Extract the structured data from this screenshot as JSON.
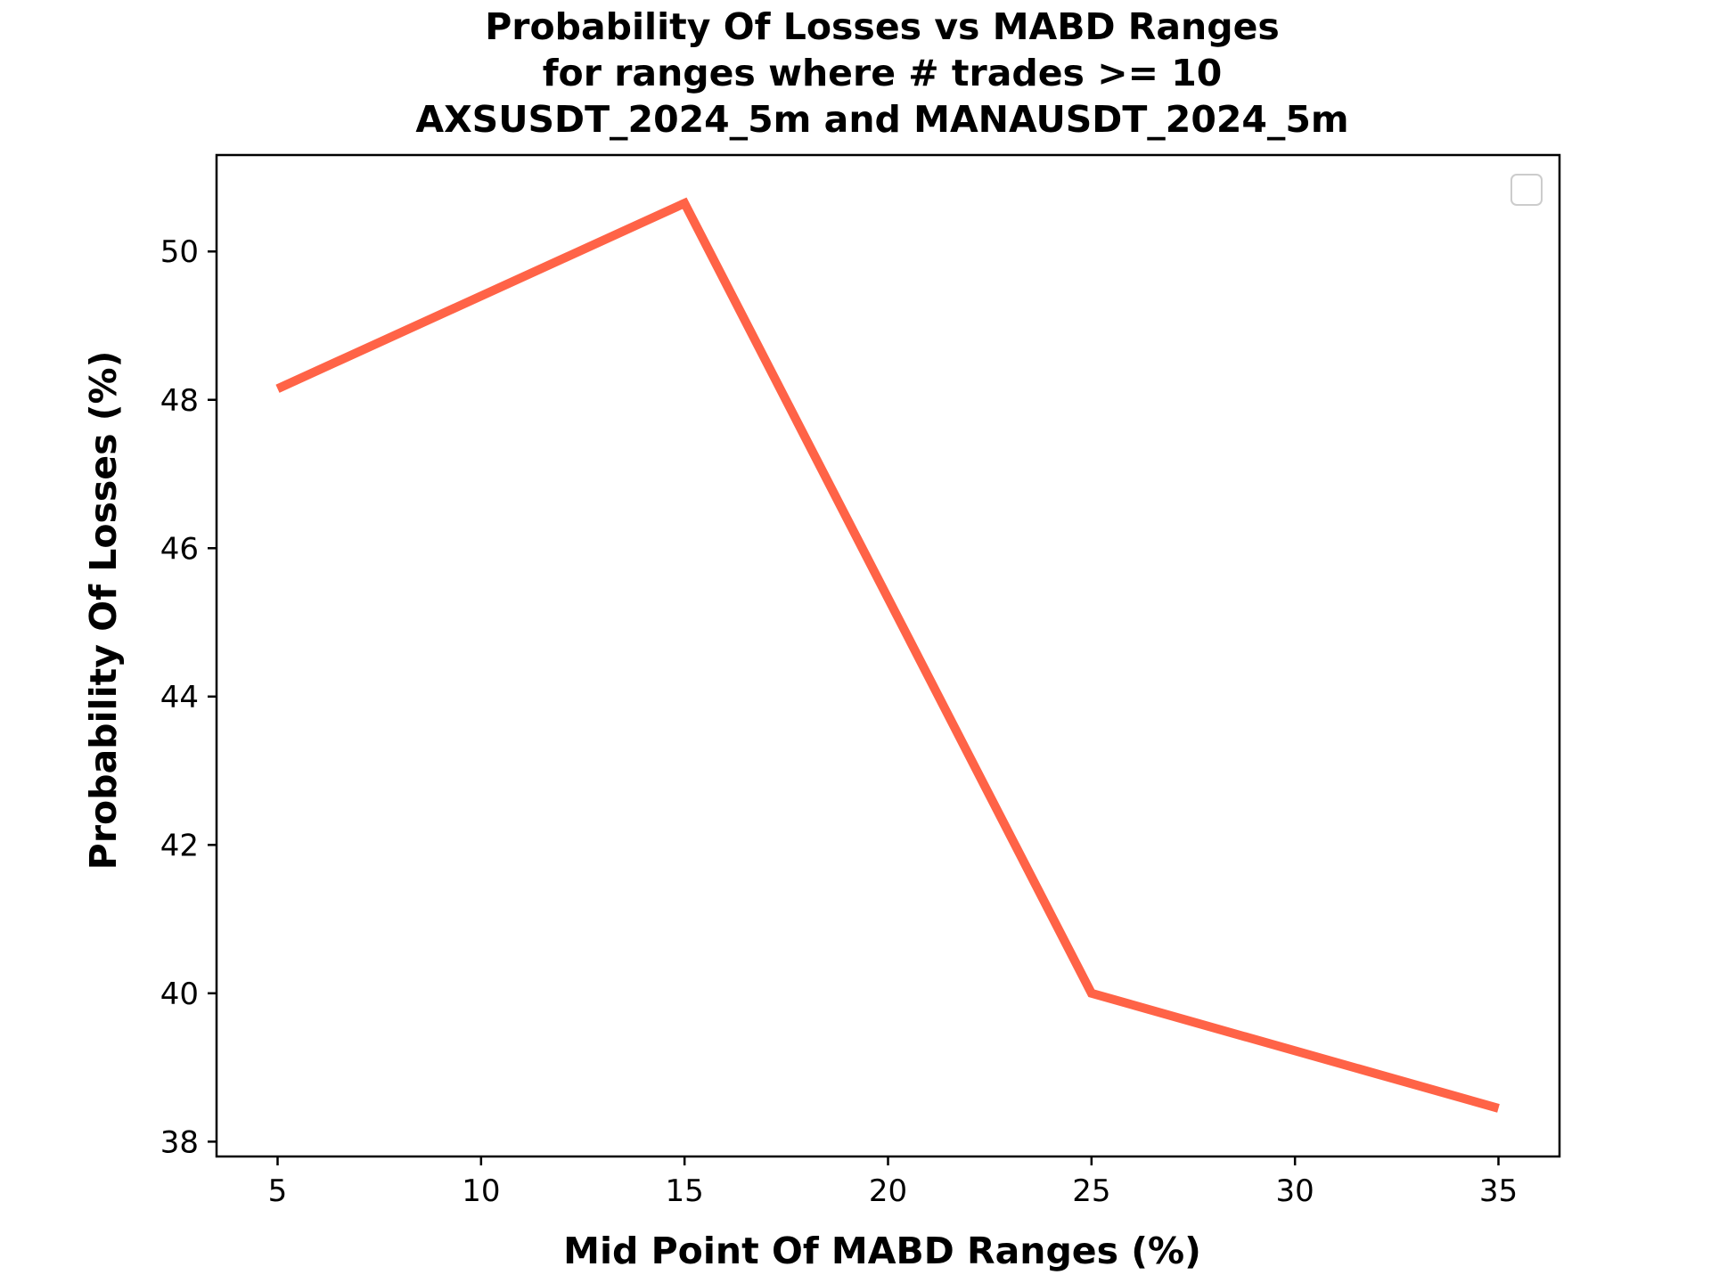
{
  "chart_data": {
    "type": "line",
    "title_lines": [
      "Probability Of Losses vs MABD Ranges",
      "for ranges where # trades >= 10",
      "AXSUSDT_2024_5m and MANAUSDT_2024_5m"
    ],
    "xlabel": "Mid Point Of MABD Ranges (%)",
    "ylabel": "Probability Of Losses (%)",
    "x": [
      5,
      15,
      25,
      35
    ],
    "series": [
      {
        "values": [
          48.15,
          50.65,
          40.0,
          38.45
        ],
        "color": "#ff6347"
      }
    ],
    "xlim": [
      3.5,
      36.5
    ],
    "ylim": [
      37.8,
      51.3
    ],
    "xticks": [
      5,
      10,
      15,
      20,
      25,
      30,
      35
    ],
    "yticks": [
      38,
      40,
      42,
      44,
      46,
      48,
      50
    ],
    "grid": false,
    "legend": {
      "placement": "top-right",
      "entries": []
    }
  }
}
